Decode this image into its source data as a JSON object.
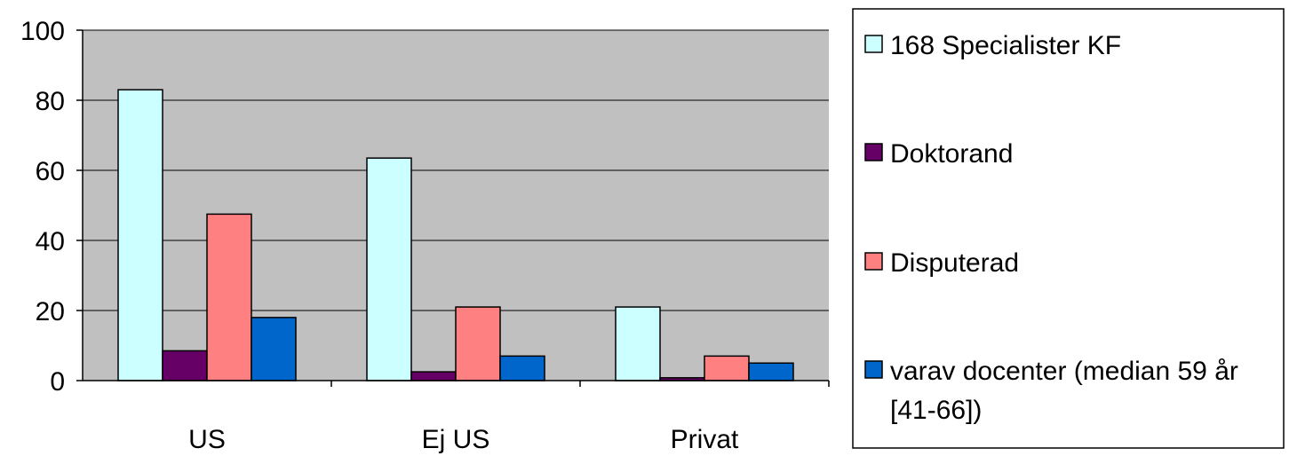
{
  "chart_data": {
    "type": "bar",
    "categories": [
      "US",
      "Ej US",
      "Privat"
    ],
    "series": [
      {
        "name": "168 Specialister KF",
        "color": "#ccffff",
        "values": [
          83,
          63.5,
          21
        ]
      },
      {
        "name": "Doktorand",
        "color": "#660066",
        "values": [
          8.5,
          2.5,
          0.8
        ]
      },
      {
        "name": "Disputerad",
        "color": "#ff8080",
        "values": [
          47.5,
          21,
          7
        ]
      },
      {
        "name": "varav docenter (median 59 år [41-66])",
        "legend_lines": [
          "varav docenter (median 59 år",
          "[41-66])"
        ],
        "color": "#0066cc",
        "values": [
          18,
          7,
          5
        ]
      }
    ],
    "ylim": [
      0,
      100
    ],
    "yticks": [
      0,
      20,
      40,
      60,
      80,
      100
    ],
    "grid": true,
    "plot_background": "#c0c0c0",
    "legend_position": "right",
    "title": "",
    "xlabel": "",
    "ylabel": ""
  }
}
